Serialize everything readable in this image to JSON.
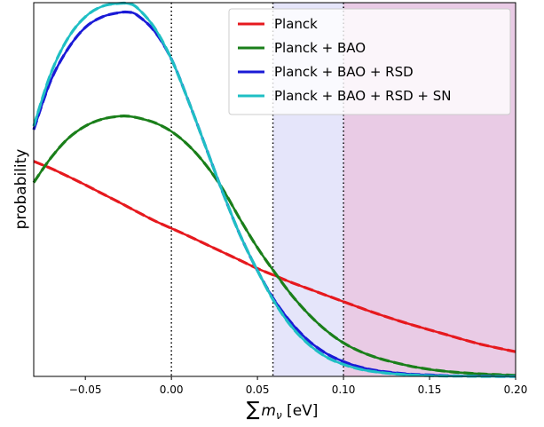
{
  "chart_data": {
    "type": "line",
    "title": "",
    "xlabel_sum": "∑",
    "xlabel_m": "m",
    "xlabel_sub": "ν",
    "xlabel_unit": " [eV]",
    "ylabel": "probability",
    "xlim": [
      -0.08,
      0.2
    ],
    "ylim": [
      0,
      1.06
    ],
    "x_ticks": [
      -0.05,
      0.0,
      0.05,
      0.1,
      0.15,
      0.2
    ],
    "x_tick_labels": [
      "−0.05",
      "0.00",
      "0.05",
      "0.10",
      "0.15",
      "0.20"
    ],
    "y_ticks_shown": false,
    "grid": false,
    "legend_position": "top-right",
    "shaded_regions": [
      {
        "x0": 0.059,
        "x1": 0.1,
        "color": "#e5e5fa"
      },
      {
        "x0": 0.1,
        "x1": 0.2,
        "color": "#e9cbe5"
      }
    ],
    "vertical_lines": [
      0.0,
      0.059,
      0.1
    ],
    "x_sample": [
      -0.08,
      -0.07,
      -0.06,
      -0.05,
      -0.04,
      -0.03,
      -0.025,
      -0.02,
      -0.01,
      0.0,
      0.01,
      0.02,
      0.03,
      0.04,
      0.05,
      0.06,
      0.07,
      0.08,
      0.09,
      0.1,
      0.11,
      0.12,
      0.13,
      0.14,
      0.15,
      0.16,
      0.17,
      0.18,
      0.19,
      0.2
    ],
    "series": [
      {
        "name": "Planck",
        "color": "#e6191e",
        "values": [
          0.61,
          0.59,
          0.567,
          0.543,
          0.518,
          0.493,
          0.48,
          0.467,
          0.442,
          0.42,
          0.398,
          0.375,
          0.352,
          0.329,
          0.306,
          0.286,
          0.266,
          0.248,
          0.23,
          0.212,
          0.194,
          0.177,
          0.161,
          0.146,
          0.132,
          0.118,
          0.104,
          0.091,
          0.08,
          0.07
        ]
      },
      {
        "name": "Planck + BAO",
        "color": "#1a7f1a",
        "values": [
          0.55,
          0.62,
          0.675,
          0.71,
          0.73,
          0.738,
          0.738,
          0.734,
          0.72,
          0.695,
          0.655,
          0.6,
          0.53,
          0.445,
          0.365,
          0.295,
          0.23,
          0.175,
          0.13,
          0.095,
          0.07,
          0.052,
          0.039,
          0.028,
          0.02,
          0.014,
          0.01,
          0.007,
          0.005,
          0.003
        ]
      },
      {
        "name": "Planck + BAO + RSD",
        "color": "#1a1ad6",
        "values": [
          0.7,
          0.84,
          0.93,
          0.99,
          1.02,
          1.032,
          1.033,
          1.025,
          0.98,
          0.9,
          0.78,
          0.65,
          0.52,
          0.4,
          0.3,
          0.215,
          0.15,
          0.1,
          0.065,
          0.042,
          0.026,
          0.016,
          0.01,
          0.006,
          0.004,
          0.002,
          0.001,
          0.001,
          0.0,
          0.0
        ]
      },
      {
        "name": "Planck + BAO + RSD + SN",
        "color": "#1fbfc4",
        "values": [
          0.71,
          0.86,
          0.96,
          1.02,
          1.05,
          1.058,
          1.057,
          1.046,
          0.99,
          0.9,
          0.78,
          0.65,
          0.52,
          0.4,
          0.3,
          0.21,
          0.14,
          0.09,
          0.055,
          0.034,
          0.02,
          0.012,
          0.007,
          0.004,
          0.002,
          0.001,
          0.001,
          0.0,
          0.0,
          0.0
        ]
      }
    ]
  }
}
